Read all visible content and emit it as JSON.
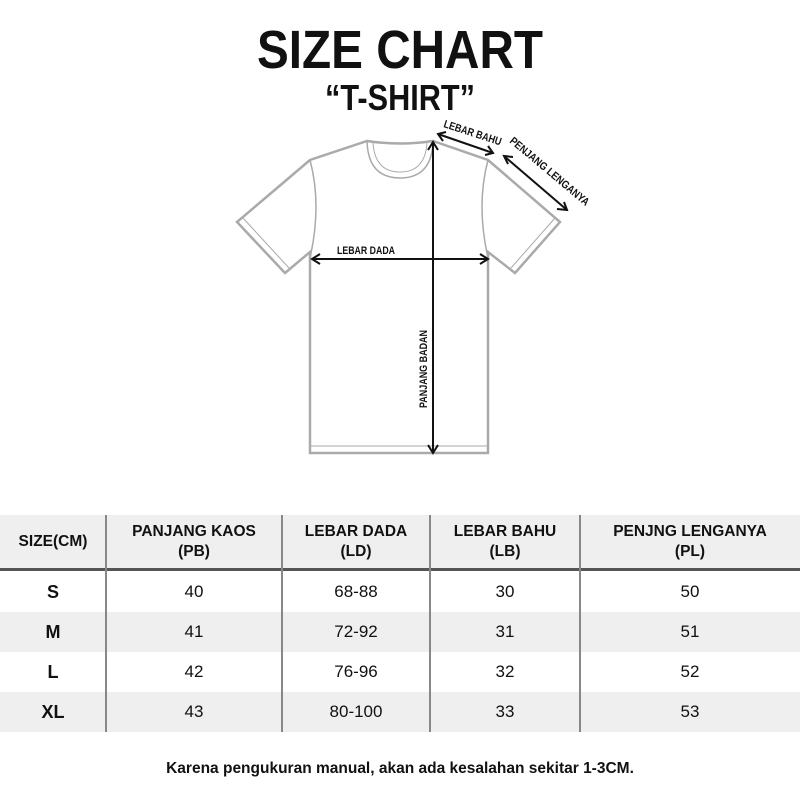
{
  "header": {
    "title": "SIZE CHART",
    "subtitle": "“T-SHIRT”"
  },
  "diagram": {
    "labels": {
      "shoulder": "LEBAR BAHU",
      "sleeve": "PENJANG LENGANYA",
      "chest": "LEBAR DADA",
      "body": "PANJANG BADAN"
    }
  },
  "table": {
    "headers": [
      {
        "line1": "SIZE(CM)",
        "line2": ""
      },
      {
        "line1": "PANJANG KAOS",
        "line2": "(PB)"
      },
      {
        "line1": "LEBAR DADA",
        "line2": "(LD)"
      },
      {
        "line1": "LEBAR BAHU",
        "line2": "(LB)"
      },
      {
        "line1": "PENJNG LENGANYA",
        "line2": "(PL)"
      }
    ],
    "rows": [
      [
        "S",
        "40",
        "68-88",
        "30",
        "50"
      ],
      [
        "M",
        "41",
        "72-92",
        "31",
        "51"
      ],
      [
        "L",
        "42",
        "76-96",
        "32",
        "52"
      ],
      [
        "XL",
        "43",
        "80-100",
        "33",
        "53"
      ]
    ]
  },
  "footer": {
    "note": "Karena pengukuran manual, akan ada kesalahan sekitar 1-3CM."
  }
}
